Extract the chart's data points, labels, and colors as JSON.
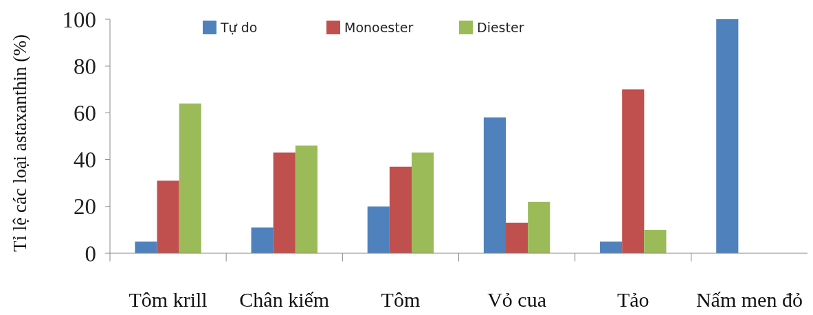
{
  "chart_data": {
    "type": "bar",
    "ylabel": "Tỉ lệ các loại astaxanthin (%)",
    "categories": [
      "Tôm krill",
      "Chân kiếm",
      "Tôm",
      "Vỏ cua",
      "Tảo",
      "Nấm men đỏ"
    ],
    "series": [
      {
        "name": "Tự do",
        "color": "#4f81bd",
        "values": [
          5,
          11,
          20,
          58,
          5,
          100
        ]
      },
      {
        "name": "Monoester",
        "color": "#c0504d",
        "values": [
          31,
          43,
          37,
          13,
          70,
          null
        ]
      },
      {
        "name": "Diester",
        "color": "#9bbb59",
        "values": [
          64,
          46,
          43,
          22,
          10,
          null
        ]
      }
    ],
    "ylim": [
      0,
      100
    ],
    "yticks": [
      0,
      20,
      40,
      60,
      80,
      100
    ],
    "legend": "top",
    "grid": false
  }
}
